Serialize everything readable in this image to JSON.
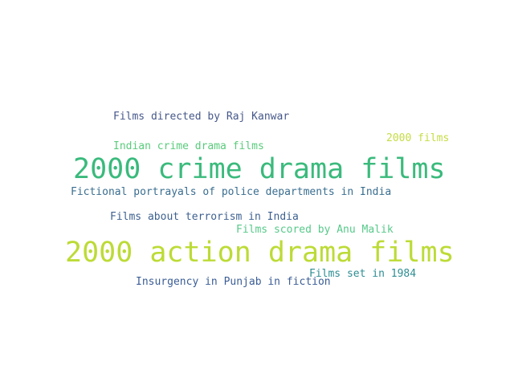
{
  "word_cloud": {
    "words": [
      {
        "text": "Films directed by Raj Kanwar",
        "color": "#46588a"
      },
      {
        "text": "2000 films",
        "color": "#c6dc44"
      },
      {
        "text": "Indian crime drama films",
        "color": "#5acb7c"
      },
      {
        "text": "2000 crime drama films",
        "color": "#3aba7c"
      },
      {
        "text": "Fictional portrayals of police departments in India",
        "color": "#3a6e90"
      },
      {
        "text": "Films about terrorism in India",
        "color": "#3e6190"
      },
      {
        "text": "Films scored by Anu Malik",
        "color": "#57c98a"
      },
      {
        "text": "2000 action drama films",
        "color": "#bcdb36"
      },
      {
        "text": "Films set in 1984",
        "color": "#2e8d92"
      },
      {
        "text": "Insurgency in Punjab in fiction",
        "color": "#3b5d95"
      }
    ]
  }
}
